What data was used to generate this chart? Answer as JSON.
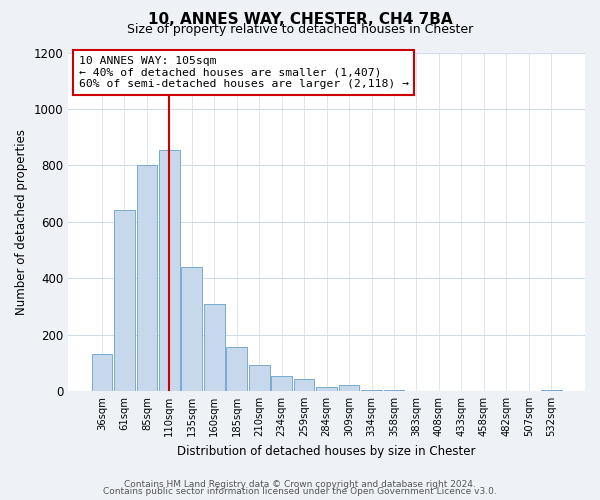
{
  "title": "10, ANNES WAY, CHESTER, CH4 7BA",
  "subtitle": "Size of property relative to detached houses in Chester",
  "xlabel": "Distribution of detached houses by size in Chester",
  "ylabel": "Number of detached properties",
  "bar_labels": [
    "36sqm",
    "61sqm",
    "85sqm",
    "110sqm",
    "135sqm",
    "160sqm",
    "185sqm",
    "210sqm",
    "234sqm",
    "259sqm",
    "284sqm",
    "309sqm",
    "334sqm",
    "358sqm",
    "383sqm",
    "408sqm",
    "433sqm",
    "458sqm",
    "482sqm",
    "507sqm",
    "532sqm"
  ],
  "bar_values": [
    130,
    640,
    800,
    855,
    440,
    310,
    157,
    93,
    53,
    42,
    15,
    20,
    5,
    3,
    0,
    0,
    0,
    0,
    0,
    0,
    5
  ],
  "bar_color": "#c8d8ec",
  "bar_edge_color": "#7aaad0",
  "vline_x": 3,
  "vline_color": "#cc0000",
  "annotation_title": "10 ANNES WAY: 105sqm",
  "annotation_line1": "← 40% of detached houses are smaller (1,407)",
  "annotation_line2": "60% of semi-detached houses are larger (2,118) →",
  "annotation_box_color": "#ffffff",
  "annotation_box_edge": "#cc0000",
  "ylim": [
    0,
    1200
  ],
  "yticks": [
    0,
    200,
    400,
    600,
    800,
    1000,
    1200
  ],
  "footer1": "Contains HM Land Registry data © Crown copyright and database right 2024.",
  "footer2": "Contains public sector information licensed under the Open Government Licence v3.0.",
  "bg_color": "#eef2f7",
  "plot_bg_color": "#ffffff",
  "grid_color": "#d0dce8"
}
